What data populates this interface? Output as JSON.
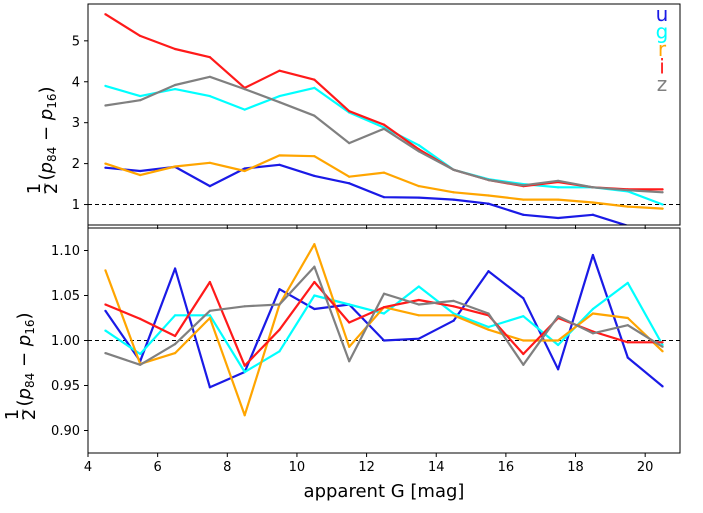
{
  "chart_data": {
    "shared_x": [
      4.5,
      5.5,
      6.5,
      7.5,
      8.5,
      9.5,
      10.5,
      11.5,
      12.5,
      13.5,
      14.5,
      15.5,
      16.5,
      17.5,
      18.5,
      19.5,
      20.5
    ],
    "xlabel": "apparent G [mag]",
    "xticks": [
      "4",
      "6",
      "8",
      "10",
      "12",
      "14",
      "16",
      "18",
      "20"
    ],
    "xlim": [
      4,
      21
    ],
    "legend": {
      "location": "top-right",
      "entries": [
        {
          "label": "u",
          "color": "#1a1ae6"
        },
        {
          "label": "g",
          "color": "#00ffff"
        },
        {
          "label": "r",
          "color": "#ffa500"
        },
        {
          "label": "i",
          "color": "#ff1a1a"
        },
        {
          "label": "z",
          "color": "#808080"
        }
      ]
    },
    "panels": [
      {
        "type": "line",
        "ylabel": "½(p84 − p16)",
        "ylabel_parts": {
          "frac": "1",
          "den": "2",
          "open": "(",
          "p": "p",
          "sub1": "84",
          "minus": " − ",
          "sub2": "16",
          "close": ")"
        },
        "ylim": [
          0.5,
          5.9
        ],
        "yticks": [
          "1",
          "2",
          "3",
          "4",
          "5"
        ],
        "reference_line": 1.0,
        "series": [
          {
            "name": "u",
            "color": "#1a1ae6",
            "values": [
              1.9,
              1.82,
              1.92,
              1.45,
              1.88,
              1.97,
              1.7,
              1.52,
              1.18,
              1.17,
              1.12,
              1.02,
              0.75,
              0.67,
              0.75,
              0.48,
              0.45
            ]
          },
          {
            "name": "g",
            "color": "#00ffff",
            "values": [
              3.9,
              3.65,
              3.82,
              3.65,
              3.32,
              3.65,
              3.85,
              3.25,
              2.88,
              2.45,
              1.85,
              1.62,
              1.5,
              1.42,
              1.42,
              1.32,
              1.0
            ]
          },
          {
            "name": "r",
            "color": "#ffa500",
            "values": [
              2.0,
              1.72,
              1.93,
              2.02,
              1.82,
              2.2,
              2.18,
              1.68,
              1.78,
              1.45,
              1.3,
              1.22,
              1.12,
              1.12,
              1.05,
              0.95,
              0.9
            ]
          },
          {
            "name": "i",
            "color": "#ff1a1a",
            "values": [
              5.65,
              5.12,
              4.8,
              4.6,
              3.85,
              4.27,
              4.05,
              3.28,
              2.95,
              2.35,
              1.85,
              1.6,
              1.45,
              1.55,
              1.42,
              1.37,
              1.37
            ]
          },
          {
            "name": "z",
            "color": "#808080",
            "values": [
              3.42,
              3.55,
              3.92,
              4.12,
              3.82,
              3.5,
              3.17,
              2.5,
              2.85,
              2.3,
              1.85,
              1.6,
              1.47,
              1.58,
              1.42,
              1.35,
              1.3
            ]
          }
        ]
      },
      {
        "type": "line",
        "ylabel": "½(p84 − p16)",
        "ylabel_parts": {
          "frac": "1",
          "den": "2",
          "open": "(",
          "p": "p",
          "sub1": "84",
          "minus": " − ",
          "sub2": "16",
          "close": ")"
        },
        "ylim": [
          0.875,
          1.125
        ],
        "yticks": [
          "0.90",
          "0.95",
          "1.00",
          "1.05",
          "1.10"
        ],
        "reference_line": 1.0,
        "series": [
          {
            "name": "u",
            "color": "#1a1ae6",
            "values": [
              1.033,
              0.977,
              1.08,
              0.948,
              0.965,
              1.057,
              1.035,
              1.04,
              1.0,
              1.002,
              1.022,
              1.077,
              1.047,
              0.968,
              1.095,
              0.981,
              0.949
            ]
          },
          {
            "name": "g",
            "color": "#00ffff",
            "values": [
              1.011,
              0.985,
              1.028,
              1.028,
              0.965,
              0.988,
              1.05,
              1.04,
              1.03,
              1.06,
              1.03,
              1.015,
              1.027,
              0.995,
              1.035,
              1.064,
              0.995
            ]
          },
          {
            "name": "r",
            "color": "#ffa500",
            "values": [
              1.078,
              0.974,
              0.986,
              1.025,
              0.917,
              1.04,
              1.107,
              0.993,
              1.037,
              1.028,
              1.028,
              1.012,
              1.0,
              1.0,
              1.03,
              1.025,
              0.988
            ]
          },
          {
            "name": "i",
            "color": "#ff1a1a",
            "values": [
              1.04,
              1.024,
              1.005,
              1.065,
              0.972,
              1.012,
              1.065,
              1.02,
              1.037,
              1.045,
              1.038,
              1.028,
              0.985,
              1.025,
              1.01,
              0.998,
              0.998
            ]
          },
          {
            "name": "z",
            "color": "#808080",
            "values": [
              0.986,
              0.973,
              0.996,
              1.033,
              1.038,
              1.04,
              1.082,
              0.977,
              1.052,
              1.04,
              1.044,
              1.03,
              0.973,
              1.027,
              1.008,
              1.017,
              0.993
            ]
          }
        ]
      }
    ]
  }
}
